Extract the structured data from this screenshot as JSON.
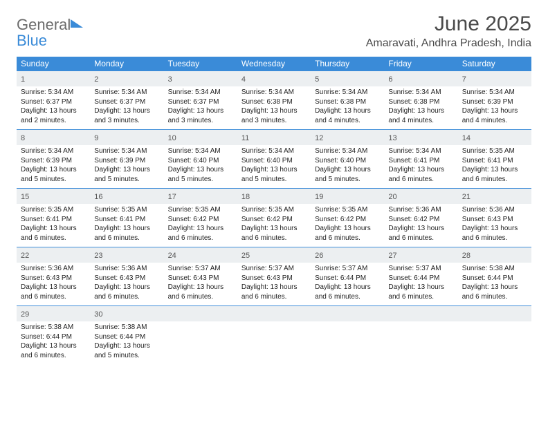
{
  "logo": {
    "line1": "General",
    "line2": "Blue"
  },
  "title": "June 2025",
  "subtitle": "Amaravati, Andhra Pradesh, India",
  "colors": {
    "accent": "#3a8bd8",
    "header_text": "#ffffff",
    "daynum_bg": "#eceff1",
    "body_text": "#222222",
    "logo_gray": "#6b6b6b"
  },
  "day_names": [
    "Sunday",
    "Monday",
    "Tuesday",
    "Wednesday",
    "Thursday",
    "Friday",
    "Saturday"
  ],
  "weeks": [
    [
      {
        "n": "1",
        "sr": "Sunrise: 5:34 AM",
        "ss": "Sunset: 6:37 PM",
        "d1": "Daylight: 13 hours",
        "d2": "and 2 minutes."
      },
      {
        "n": "2",
        "sr": "Sunrise: 5:34 AM",
        "ss": "Sunset: 6:37 PM",
        "d1": "Daylight: 13 hours",
        "d2": "and 3 minutes."
      },
      {
        "n": "3",
        "sr": "Sunrise: 5:34 AM",
        "ss": "Sunset: 6:37 PM",
        "d1": "Daylight: 13 hours",
        "d2": "and 3 minutes."
      },
      {
        "n": "4",
        "sr": "Sunrise: 5:34 AM",
        "ss": "Sunset: 6:38 PM",
        "d1": "Daylight: 13 hours",
        "d2": "and 3 minutes."
      },
      {
        "n": "5",
        "sr": "Sunrise: 5:34 AM",
        "ss": "Sunset: 6:38 PM",
        "d1": "Daylight: 13 hours",
        "d2": "and 4 minutes."
      },
      {
        "n": "6",
        "sr": "Sunrise: 5:34 AM",
        "ss": "Sunset: 6:38 PM",
        "d1": "Daylight: 13 hours",
        "d2": "and 4 minutes."
      },
      {
        "n": "7",
        "sr": "Sunrise: 5:34 AM",
        "ss": "Sunset: 6:39 PM",
        "d1": "Daylight: 13 hours",
        "d2": "and 4 minutes."
      }
    ],
    [
      {
        "n": "8",
        "sr": "Sunrise: 5:34 AM",
        "ss": "Sunset: 6:39 PM",
        "d1": "Daylight: 13 hours",
        "d2": "and 5 minutes."
      },
      {
        "n": "9",
        "sr": "Sunrise: 5:34 AM",
        "ss": "Sunset: 6:39 PM",
        "d1": "Daylight: 13 hours",
        "d2": "and 5 minutes."
      },
      {
        "n": "10",
        "sr": "Sunrise: 5:34 AM",
        "ss": "Sunset: 6:40 PM",
        "d1": "Daylight: 13 hours",
        "d2": "and 5 minutes."
      },
      {
        "n": "11",
        "sr": "Sunrise: 5:34 AM",
        "ss": "Sunset: 6:40 PM",
        "d1": "Daylight: 13 hours",
        "d2": "and 5 minutes."
      },
      {
        "n": "12",
        "sr": "Sunrise: 5:34 AM",
        "ss": "Sunset: 6:40 PM",
        "d1": "Daylight: 13 hours",
        "d2": "and 5 minutes."
      },
      {
        "n": "13",
        "sr": "Sunrise: 5:34 AM",
        "ss": "Sunset: 6:41 PM",
        "d1": "Daylight: 13 hours",
        "d2": "and 6 minutes."
      },
      {
        "n": "14",
        "sr": "Sunrise: 5:35 AM",
        "ss": "Sunset: 6:41 PM",
        "d1": "Daylight: 13 hours",
        "d2": "and 6 minutes."
      }
    ],
    [
      {
        "n": "15",
        "sr": "Sunrise: 5:35 AM",
        "ss": "Sunset: 6:41 PM",
        "d1": "Daylight: 13 hours",
        "d2": "and 6 minutes."
      },
      {
        "n": "16",
        "sr": "Sunrise: 5:35 AM",
        "ss": "Sunset: 6:41 PM",
        "d1": "Daylight: 13 hours",
        "d2": "and 6 minutes."
      },
      {
        "n": "17",
        "sr": "Sunrise: 5:35 AM",
        "ss": "Sunset: 6:42 PM",
        "d1": "Daylight: 13 hours",
        "d2": "and 6 minutes."
      },
      {
        "n": "18",
        "sr": "Sunrise: 5:35 AM",
        "ss": "Sunset: 6:42 PM",
        "d1": "Daylight: 13 hours",
        "d2": "and 6 minutes."
      },
      {
        "n": "19",
        "sr": "Sunrise: 5:35 AM",
        "ss": "Sunset: 6:42 PM",
        "d1": "Daylight: 13 hours",
        "d2": "and 6 minutes."
      },
      {
        "n": "20",
        "sr": "Sunrise: 5:36 AM",
        "ss": "Sunset: 6:42 PM",
        "d1": "Daylight: 13 hours",
        "d2": "and 6 minutes."
      },
      {
        "n": "21",
        "sr": "Sunrise: 5:36 AM",
        "ss": "Sunset: 6:43 PM",
        "d1": "Daylight: 13 hours",
        "d2": "and 6 minutes."
      }
    ],
    [
      {
        "n": "22",
        "sr": "Sunrise: 5:36 AM",
        "ss": "Sunset: 6:43 PM",
        "d1": "Daylight: 13 hours",
        "d2": "and 6 minutes."
      },
      {
        "n": "23",
        "sr": "Sunrise: 5:36 AM",
        "ss": "Sunset: 6:43 PM",
        "d1": "Daylight: 13 hours",
        "d2": "and 6 minutes."
      },
      {
        "n": "24",
        "sr": "Sunrise: 5:37 AM",
        "ss": "Sunset: 6:43 PM",
        "d1": "Daylight: 13 hours",
        "d2": "and 6 minutes."
      },
      {
        "n": "25",
        "sr": "Sunrise: 5:37 AM",
        "ss": "Sunset: 6:43 PM",
        "d1": "Daylight: 13 hours",
        "d2": "and 6 minutes."
      },
      {
        "n": "26",
        "sr": "Sunrise: 5:37 AM",
        "ss": "Sunset: 6:44 PM",
        "d1": "Daylight: 13 hours",
        "d2": "and 6 minutes."
      },
      {
        "n": "27",
        "sr": "Sunrise: 5:37 AM",
        "ss": "Sunset: 6:44 PM",
        "d1": "Daylight: 13 hours",
        "d2": "and 6 minutes."
      },
      {
        "n": "28",
        "sr": "Sunrise: 5:38 AM",
        "ss": "Sunset: 6:44 PM",
        "d1": "Daylight: 13 hours",
        "d2": "and 6 minutes."
      }
    ],
    [
      {
        "n": "29",
        "sr": "Sunrise: 5:38 AM",
        "ss": "Sunset: 6:44 PM",
        "d1": "Daylight: 13 hours",
        "d2": "and 6 minutes."
      },
      {
        "n": "30",
        "sr": "Sunrise: 5:38 AM",
        "ss": "Sunset: 6:44 PM",
        "d1": "Daylight: 13 hours",
        "d2": "and 5 minutes."
      },
      {
        "empty": true
      },
      {
        "empty": true
      },
      {
        "empty": true
      },
      {
        "empty": true
      },
      {
        "empty": true
      }
    ]
  ]
}
